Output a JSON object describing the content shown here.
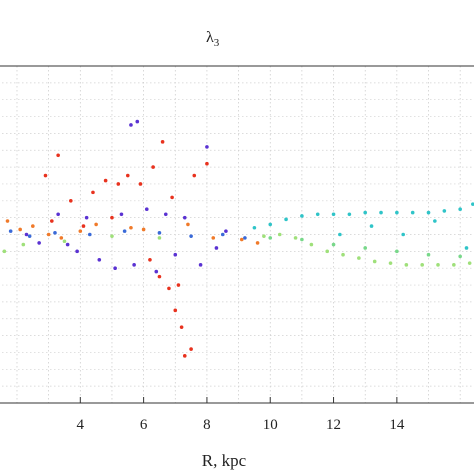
{
  "chart_data": {
    "type": "scatter",
    "title": "λ",
    "title_subscript": "3",
    "xlabel": "R, kpc",
    "ylabel": "",
    "xlim": [
      1.4,
      16.5
    ],
    "ylim": [
      -1.0,
      1.0
    ],
    "x_ticks": [
      4,
      6,
      8,
      10,
      12,
      14
    ],
    "grid": true,
    "legend": "none",
    "colors": {
      "red": "#e8321e",
      "orange": "#f07a2a",
      "purple": "#5a32d2",
      "blue": "#3a6ad8",
      "teal": "#2fc4c8",
      "light_green": "#9fe07a",
      "green": "#78d88a"
    },
    "series": [
      {
        "values": [
          [
            2.9,
            0.35
          ],
          [
            3.3,
            0.47
          ],
          [
            3.7,
            0.2
          ],
          [
            4.4,
            0.25
          ],
          [
            4.8,
            0.32
          ],
          [
            5.2,
            0.3
          ],
          [
            5.5,
            0.35
          ],
          [
            5.9,
            0.3
          ],
          [
            6.3,
            0.4
          ],
          [
            6.6,
            0.55
          ],
          [
            6.9,
            0.22
          ],
          [
            7.6,
            0.35
          ],
          [
            8.0,
            0.42
          ],
          [
            6.2,
            -0.15
          ],
          [
            6.8,
            -0.32
          ],
          [
            7.0,
            -0.45
          ],
          [
            7.2,
            -0.55
          ],
          [
            7.3,
            -0.72
          ],
          [
            7.5,
            -0.68
          ],
          [
            6.5,
            -0.25
          ],
          [
            7.1,
            -0.3
          ],
          [
            4.1,
            0.05
          ],
          [
            3.1,
            0.08
          ],
          [
            5.0,
            0.1
          ]
        ]
      },
      {
        "values": [
          [
            1.7,
            0.08
          ],
          [
            2.1,
            0.03
          ],
          [
            2.5,
            0.05
          ],
          [
            3.0,
            0.0
          ],
          [
            3.4,
            -0.02
          ],
          [
            4.0,
            0.02
          ],
          [
            4.5,
            0.06
          ],
          [
            5.6,
            0.04
          ],
          [
            6.0,
            0.03
          ],
          [
            7.4,
            0.06
          ],
          [
            8.2,
            -0.02
          ],
          [
            9.1,
            -0.03
          ],
          [
            9.6,
            -0.05
          ]
        ]
      },
      {
        "values": [
          [
            5.6,
            0.65
          ],
          [
            5.8,
            0.67
          ],
          [
            8.0,
            0.52
          ],
          [
            2.7,
            -0.05
          ],
          [
            3.3,
            0.12
          ],
          [
            3.9,
            -0.1
          ],
          [
            4.6,
            -0.15
          ],
          [
            5.1,
            -0.2
          ],
          [
            5.7,
            -0.18
          ],
          [
            6.4,
            -0.22
          ],
          [
            7.0,
            -0.12
          ],
          [
            7.8,
            -0.18
          ],
          [
            8.3,
            -0.08
          ],
          [
            4.2,
            0.1
          ],
          [
            5.3,
            0.12
          ],
          [
            6.1,
            0.15
          ],
          [
            6.7,
            0.12
          ],
          [
            2.3,
            0.0
          ],
          [
            3.6,
            -0.06
          ],
          [
            7.3,
            0.1
          ],
          [
            8.6,
            0.02
          ]
        ]
      },
      {
        "values": [
          [
            1.8,
            0.02
          ],
          [
            2.4,
            -0.01
          ],
          [
            3.2,
            0.01
          ],
          [
            4.3,
            0.0
          ],
          [
            5.4,
            0.02
          ],
          [
            6.5,
            0.01
          ],
          [
            7.5,
            -0.01
          ],
          [
            8.5,
            0.0
          ],
          [
            9.2,
            -0.02
          ]
        ]
      },
      {
        "values": [
          [
            9.5,
            0.04
          ],
          [
            10.0,
            0.06
          ],
          [
            10.5,
            0.09
          ],
          [
            11.0,
            0.11
          ],
          [
            11.5,
            0.12
          ],
          [
            12.0,
            0.12
          ],
          [
            12.5,
            0.12
          ],
          [
            13.0,
            0.13
          ],
          [
            13.5,
            0.13
          ],
          [
            14.0,
            0.13
          ],
          [
            14.5,
            0.13
          ],
          [
            15.0,
            0.13
          ],
          [
            15.5,
            0.14
          ],
          [
            16.0,
            0.15
          ],
          [
            16.4,
            0.18
          ],
          [
            12.2,
            0.0
          ],
          [
            13.2,
            0.05
          ],
          [
            14.2,
            0.0
          ],
          [
            15.2,
            0.08
          ],
          [
            16.2,
            -0.08
          ]
        ]
      },
      {
        "values": [
          [
            1.6,
            -0.1
          ],
          [
            2.2,
            -0.06
          ],
          [
            3.5,
            -0.04
          ],
          [
            5.0,
            -0.01
          ],
          [
            6.5,
            -0.02
          ],
          [
            9.8,
            -0.01
          ],
          [
            10.3,
            0.0
          ],
          [
            10.8,
            -0.02
          ],
          [
            11.3,
            -0.06
          ],
          [
            11.8,
            -0.1
          ],
          [
            12.3,
            -0.12
          ],
          [
            12.8,
            -0.14
          ],
          [
            13.3,
            -0.16
          ],
          [
            13.8,
            -0.17
          ],
          [
            14.3,
            -0.18
          ],
          [
            14.8,
            -0.18
          ],
          [
            15.3,
            -0.18
          ],
          [
            15.8,
            -0.18
          ],
          [
            16.3,
            -0.17
          ]
        ]
      },
      {
        "values": [
          [
            10.0,
            -0.02
          ],
          [
            11.0,
            -0.03
          ],
          [
            12.0,
            -0.06
          ],
          [
            13.0,
            -0.08
          ],
          [
            14.0,
            -0.1
          ],
          [
            15.0,
            -0.12
          ],
          [
            16.0,
            -0.13
          ]
        ]
      }
    ]
  }
}
